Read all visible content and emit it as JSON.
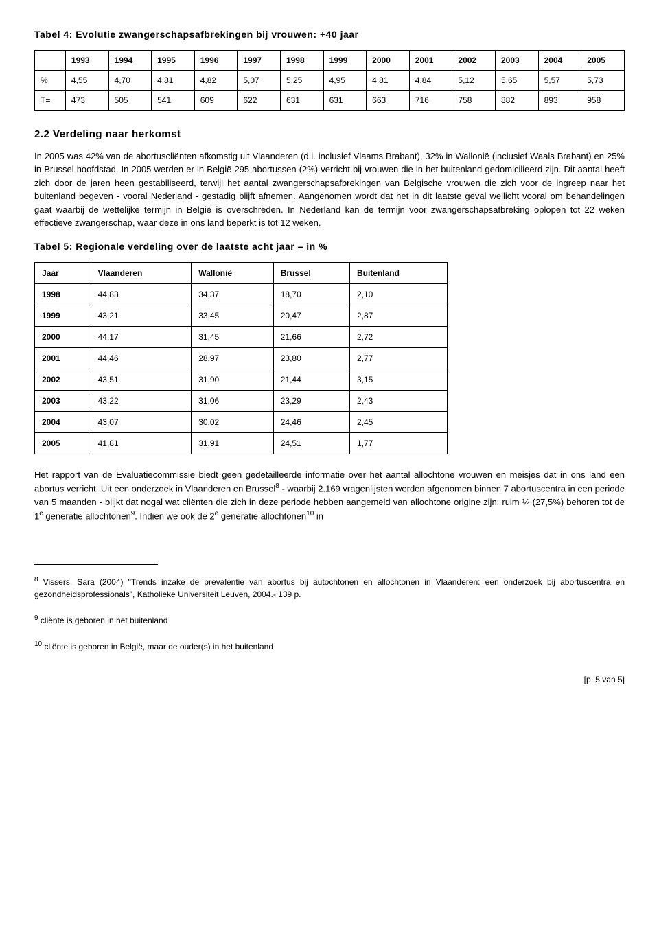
{
  "table4": {
    "title": "Tabel 4: Evolutie zwangerschapsafbrekingen bij vrouwen: +40 jaar",
    "years": [
      "1993",
      "1994",
      "1995",
      "1996",
      "1997",
      "1998",
      "1999",
      "2000",
      "2001",
      "2002",
      "2003",
      "2004",
      "2005"
    ],
    "pct_label": "%",
    "pct": [
      "4,55",
      "4,70",
      "4,81",
      "4,82",
      "5,07",
      "5,25",
      "4,95",
      "4,81",
      "4,84",
      "5,12",
      "5,65",
      "5,57",
      "5,73"
    ],
    "t_label": "T=",
    "t": [
      "473",
      "505",
      "541",
      "609",
      "622",
      "631",
      "631",
      "663",
      "716",
      "758",
      "882",
      "893",
      "958"
    ]
  },
  "section22": {
    "heading": "2.2 Verdeling naar herkomst",
    "para": "In 2005 was 42% van de abortuscliënten afkomstig uit Vlaanderen (d.i. inclusief Vlaams Brabant), 32% in Wallonië (inclusief Waals Brabant) en 25% in Brussel hoofdstad. In 2005 werden er in België 295 abortussen (2%) verricht bij vrouwen die in het buitenland gedomicilieerd zijn. Dit aantal heeft zich door de jaren heen gestabiliseerd, terwijl het aantal zwangerschapsafbrekingen van Belgische vrouwen die zich voor de ingreep naar het buitenland begeven - vooral Nederland - gestadig blijft afnemen. Aangenomen wordt dat het in dit laatste geval wellicht vooral om behandelingen gaat waarbij de wettelijke termijn in België is overschreden. In Nederland kan de termijn voor zwangerschapsafbreking oplopen tot 22 weken effectieve zwangerschap, waar deze in ons land beperkt is tot 12 weken."
  },
  "table5": {
    "title": "Tabel 5: Regionale verdeling over de laatste acht jaar – in %",
    "columns": [
      "Jaar",
      "Vlaanderen",
      "Wallonië",
      "Brussel",
      "Buitenland"
    ],
    "rows": [
      [
        "1998",
        "44,83",
        "34,37",
        "18,70",
        "2,10"
      ],
      [
        "1999",
        "43,21",
        "33,45",
        "20,47",
        "2,87"
      ],
      [
        "2000",
        "44,17",
        "31,45",
        "21,66",
        "2,72"
      ],
      [
        "2001",
        "44,46",
        "28,97",
        "23,80",
        "2,77"
      ],
      [
        "2002",
        "43,51",
        "31,90",
        "21,44",
        "3,15"
      ],
      [
        "2003",
        "43,22",
        "31,06",
        "23,29",
        "2,43"
      ],
      [
        "2004",
        "43,07",
        "30,02",
        "24,46",
        "2,45"
      ],
      [
        "2005",
        "41,81",
        "31,91",
        "24,51",
        "1,77"
      ]
    ]
  },
  "para2": {
    "pre8": "Het rapport van de Evaluatiecommissie biedt geen gedetailleerde informatie over het aantal allochtone vrouwen en meisjes dat in ons land een abortus verricht. Uit een onderzoek in Vlaanderen en Brussel",
    "post8pre9": " - waarbij 2.169 vragenlijsten werden afgenomen binnen 7 abortuscentra in een periode van 5 maanden - blijkt dat nogal wat cliënten die zich in deze periode hebben aangemeld van allochtone origine zijn: ruim ¼ (27,5%) behoren tot de 1",
    "gen1": " generatie allochtonen",
    "post9": ". Indien we ook de 2",
    "gen2": " generatie allochtonen",
    "tail": " in"
  },
  "footnotes": {
    "n8": " Vissers, Sara (2004) \"Trends inzake de prevalentie van abortus bij autochtonen en allochtonen in Vlaanderen: een onderzoek bij abortuscentra en gezondheidsprofessionals\", Katholieke Universiteit Leuven, 2004.- 139 p.",
    "n9": " cliënte is geboren in het buitenland",
    "n10": " cliënte is geboren in België, maar de ouder(s) in het buitenland"
  },
  "pagenum": "[p. 5 van 5]",
  "sup": {
    "e": "e",
    "8": "8",
    "9": "9",
    "10": "10"
  }
}
